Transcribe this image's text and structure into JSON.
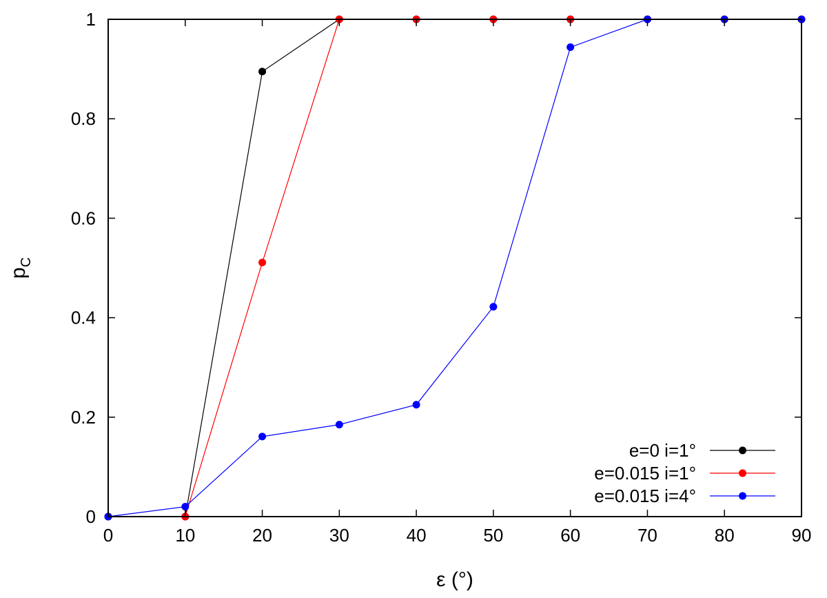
{
  "chart_data": {
    "type": "line",
    "xlabel": "ε (°)",
    "ylabel_main": "p",
    "ylabel_sub": "C",
    "xlim": [
      0,
      90
    ],
    "ylim": [
      0,
      1
    ],
    "xticks": [
      0,
      10,
      20,
      30,
      40,
      50,
      60,
      70,
      80,
      90
    ],
    "xtick_labels": [
      "0",
      "10",
      "20",
      "30",
      "40",
      "50",
      "60",
      "70",
      "80",
      "90"
    ],
    "yticks": [
      0,
      0.2,
      0.4,
      0.6,
      0.8,
      1
    ],
    "ytick_labels": [
      "0",
      "0.2",
      "0.4",
      "0.6",
      "0.8",
      "1"
    ],
    "grid": false,
    "legend_position": "bottom-right",
    "x": [
      0,
      10,
      20,
      30,
      40,
      50,
      60,
      70,
      80,
      90
    ],
    "series": [
      {
        "name": "e=0 i=1°",
        "color": "#000000",
        "values": [
          0,
          0,
          0.895,
          1,
          1,
          1,
          1,
          1,
          1,
          1
        ]
      },
      {
        "name": "e=0.015 i=1°",
        "color": "#ff0000",
        "values": [
          0,
          0,
          0.511,
          1,
          1,
          1,
          1,
          1,
          1,
          1
        ]
      },
      {
        "name": "e=0.015 i=4°",
        "color": "#0000ff",
        "values": [
          0,
          0.02,
          0.161,
          0.185,
          0.225,
          0.422,
          0.944,
          1,
          1,
          1
        ]
      }
    ]
  }
}
